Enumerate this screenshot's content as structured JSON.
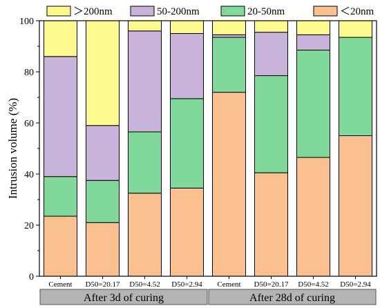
{
  "chart_data": {
    "type": "bar",
    "stacked": true,
    "ylabel": "Intrusion volume (%)",
    "ylim": [
      0,
      100
    ],
    "yticks": [
      0,
      20,
      40,
      60,
      80,
      100
    ],
    "categories": [
      "Cement",
      "D50=20.17",
      "D50=4.52",
      "D50=2.94",
      "Cement",
      "D50=20.17",
      "D50=4.52",
      "D50=2.94"
    ],
    "groups": [
      {
        "label": "After 3d of curing",
        "categories": [
          0,
          1,
          2,
          3
        ]
      },
      {
        "label": "After 28d of curing",
        "categories": [
          4,
          5,
          6,
          7
        ]
      }
    ],
    "series": [
      {
        "name": "＜20nm",
        "color": "#FAC090",
        "values": [
          23.5,
          21.0,
          32.5,
          34.5,
          72.0,
          40.5,
          46.5,
          55.0
        ]
      },
      {
        "name": "20-50nm",
        "color": "#80D99A",
        "values": [
          15.5,
          16.5,
          24.0,
          35.0,
          21.5,
          38.0,
          42.0,
          38.5
        ]
      },
      {
        "name": "50-200nm",
        "color": "#C8B4DA",
        "values": [
          47.0,
          21.5,
          39.5,
          25.5,
          1.0,
          17.0,
          6.0,
          0.0
        ]
      },
      {
        "name": "＞200nm",
        "color": "#FCF98E",
        "values": [
          14.0,
          41.0,
          4.0,
          5.0,
          5.5,
          4.5,
          5.5,
          6.5
        ]
      }
    ],
    "legend_order": [
      3,
      2,
      1,
      0
    ],
    "legend_position": "top",
    "grid": false
  }
}
